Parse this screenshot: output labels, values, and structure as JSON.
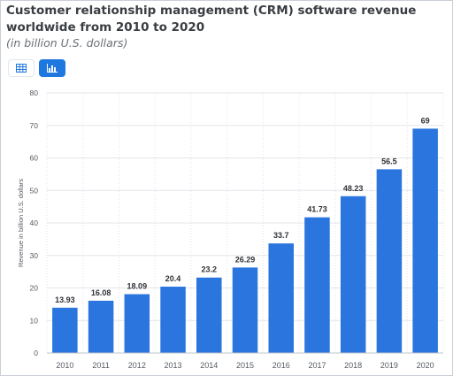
{
  "header": {
    "title": "Customer relationship management (CRM) software revenue worldwide from 2010 to 2020",
    "subtitle": "(in billion U.S. dollars)"
  },
  "view_toggle": {
    "table_icon": "table-icon",
    "chart_icon": "bar-chart-icon",
    "active": "chart",
    "active_color": "#1f78e0"
  },
  "chart_data": {
    "type": "bar",
    "categories": [
      "2010",
      "2011",
      "2012",
      "2013",
      "2014",
      "2015",
      "2016",
      "2017",
      "2018",
      "2019",
      "2020"
    ],
    "values": [
      13.93,
      16.08,
      18.09,
      20.4,
      23.2,
      26.29,
      33.7,
      41.73,
      48.23,
      56.5,
      69
    ],
    "data_labels": [
      "13.93",
      "16.08",
      "18.09",
      "20.4",
      "23.2",
      "26.29",
      "33.7",
      "41.73",
      "48.23",
      "56.5",
      "69"
    ],
    "ylabel": "Revenue in billion U.S. dollars",
    "xlabel": "",
    "ylim": [
      0,
      80
    ],
    "yticks": [
      0,
      10,
      20,
      30,
      40,
      50,
      60,
      70,
      80
    ],
    "bar_color": "#2a75de",
    "grid": true,
    "legend": "none"
  }
}
